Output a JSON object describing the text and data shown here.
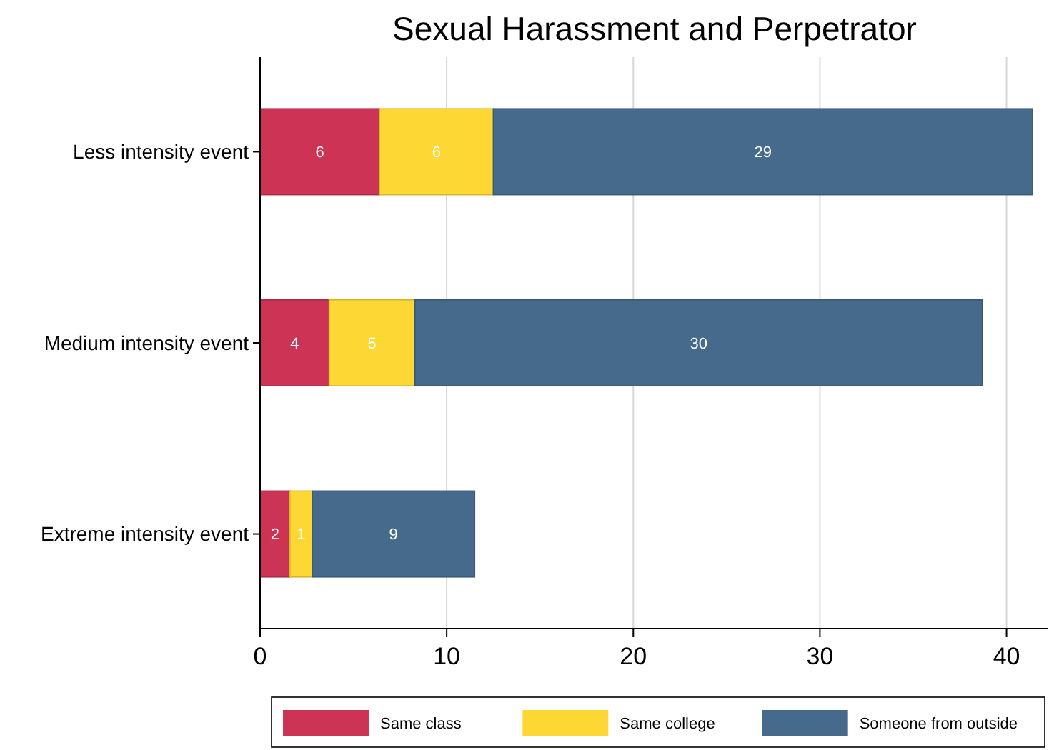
{
  "chart_data": {
    "type": "bar",
    "orientation": "horizontal",
    "stacked": true,
    "title": "Sexual Harassment and Perpetrator",
    "categories": [
      "Less intensity event",
      "Medium intensity event",
      "Extreme intensity event"
    ],
    "series": [
      {
        "name": "Same class",
        "color": "#cc3355",
        "values": [
          6.4,
          3.7,
          1.6
        ],
        "value_labels": [
          "6",
          "4",
          "2"
        ]
      },
      {
        "name": "Same college",
        "color": "#fdd835",
        "values": [
          6.1,
          4.6,
          1.2
        ],
        "value_labels": [
          "6",
          "5",
          "1"
        ]
      },
      {
        "name": "Someone from outside",
        "color": "#456a8c",
        "values": [
          28.9,
          30.4,
          8.7
        ],
        "value_labels": [
          "29",
          "30",
          "9"
        ]
      }
    ],
    "xlim": [
      0,
      42.2
    ],
    "xticks": [
      0,
      10,
      20,
      30,
      40
    ],
    "grid": "x",
    "legend": "bottom"
  }
}
